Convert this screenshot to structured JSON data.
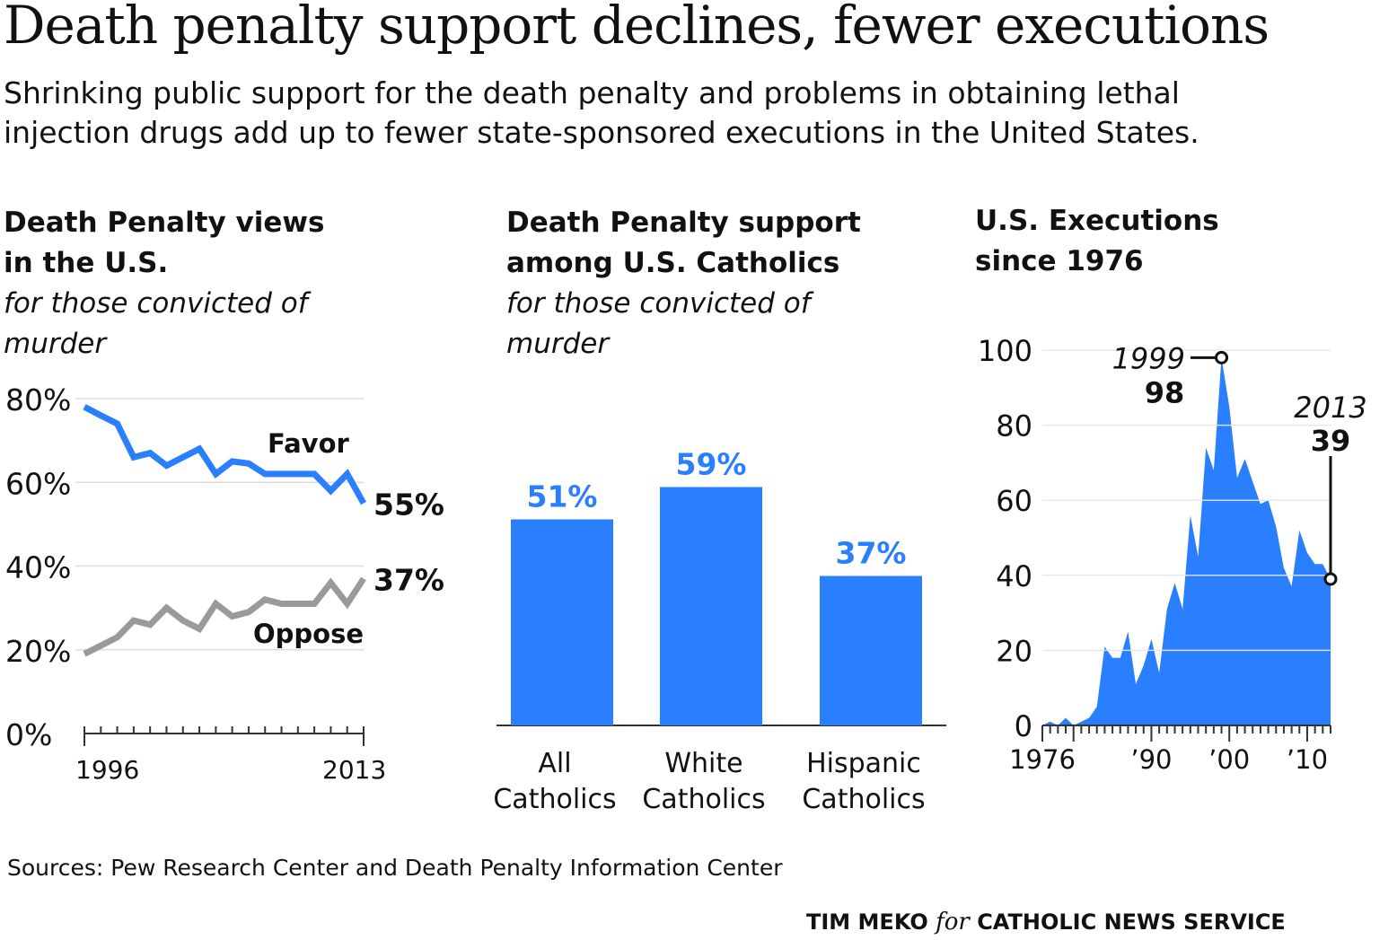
{
  "headline": "Death penalty support declines, fewer executions",
  "dek": "Shrinking public support for the death penalty and problems in obtaining lethal injection drugs add up to fewer state-sponsored executions in the United States.",
  "source": "Sources: Pew Research Center and Death Penalty Information Center",
  "credit": {
    "author": "TIM MEKO",
    "joiner": "for",
    "org": "CATHOLIC NEWS SERVICE"
  },
  "colors": {
    "blue": "#2a7fff",
    "gray": "#9a9a9a",
    "grid": "#dddddd",
    "text": "#111111"
  },
  "panels": {
    "views": {
      "title_line1": "Death Penalty views",
      "title_line2": "in the U.S.",
      "sub_line1": "for those convicted of",
      "sub_line2": "murder"
    },
    "catholics": {
      "title_line1": "Death Penalty support",
      "title_line2": "among U.S. Catholics",
      "sub_line1": "for those convicted of",
      "sub_line2": "murder"
    },
    "executions": {
      "title_line1": "U.S. Executions",
      "title_line2": "since 1976"
    }
  },
  "chart_data": [
    {
      "type": "line",
      "x": [
        1996,
        1997,
        1998,
        1999,
        2000,
        2001,
        2002,
        2003,
        2004,
        2005,
        2006,
        2007,
        2008,
        2009,
        2010,
        2011,
        2012,
        2013
      ],
      "series": [
        {
          "name": "Favor",
          "values": [
            78,
            76,
            74,
            66,
            67,
            64,
            66,
            68,
            62,
            65,
            64.5,
            62,
            62,
            62,
            62,
            58,
            62,
            55
          ]
        },
        {
          "name": "Oppose",
          "values": [
            19,
            21,
            23,
            27,
            26,
            30,
            27,
            25,
            31,
            28,
            29,
            32,
            31,
            31,
            31,
            36,
            31,
            37
          ]
        }
      ],
      "end_labels": [
        "55%",
        "37%"
      ],
      "y_ticks": [
        "0%",
        "20%",
        "40%",
        "60%",
        "80%"
      ],
      "x_tick_labels": [
        "1996",
        "2013"
      ],
      "ylim": [
        0,
        80
      ]
    },
    {
      "type": "bar",
      "categories": [
        [
          "All",
          "Catholics"
        ],
        [
          "White",
          "Catholics"
        ],
        [
          "Hispanic",
          "Catholics"
        ]
      ],
      "values": [
        51,
        59,
        37
      ],
      "value_labels": [
        "51%",
        "59%",
        "37%"
      ]
    },
    {
      "type": "area",
      "x": [
        1976,
        1977,
        1978,
        1979,
        1980,
        1981,
        1982,
        1983,
        1984,
        1985,
        1986,
        1987,
        1988,
        1989,
        1990,
        1991,
        1992,
        1993,
        1994,
        1995,
        1996,
        1997,
        1998,
        1999,
        2000,
        2001,
        2002,
        2003,
        2004,
        2005,
        2006,
        2007,
        2008,
        2009,
        2010,
        2011,
        2012,
        2013
      ],
      "values": [
        0,
        1,
        0,
        2,
        0,
        1,
        2,
        5,
        21,
        18,
        18,
        25,
        11,
        16,
        23,
        14,
        31,
        38,
        31,
        56,
        45,
        74,
        68,
        98,
        85,
        66,
        71,
        65,
        59,
        60,
        53,
        42,
        37,
        52,
        46,
        43,
        43,
        39
      ],
      "y_ticks": [
        "0",
        "20",
        "40",
        "60",
        "80",
        "100"
      ],
      "x_tick_labels": [
        "1976",
        "’90",
        "’00",
        "’10"
      ],
      "ylim": [
        0,
        100
      ],
      "annotations": [
        {
          "year_label": "1999",
          "value_label": "98"
        },
        {
          "year_label": "2013",
          "value_label": "39"
        }
      ]
    }
  ]
}
